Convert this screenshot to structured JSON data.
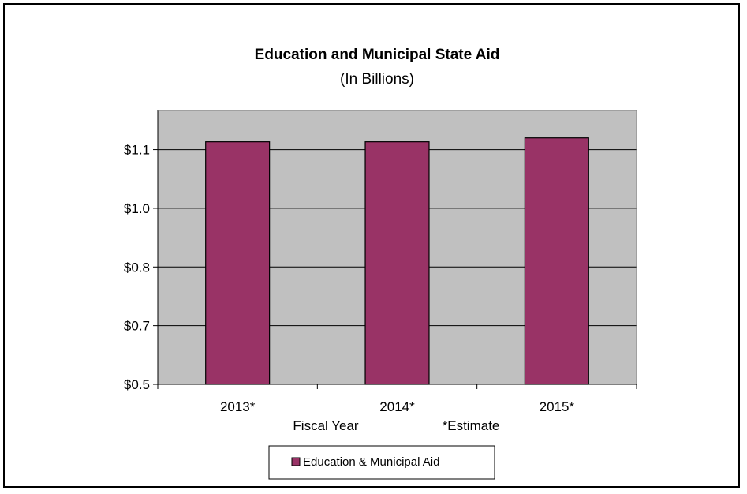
{
  "chart_data": {
    "type": "bar",
    "title": "Education and Municipal State Aid",
    "subtitle": "(In Billions)",
    "xlabel": "Fiscal Year",
    "note": "*Estimate",
    "categories": [
      "2013*",
      "2014*",
      "2015*"
    ],
    "series": [
      {
        "name": "Education & Municipal Aid",
        "values": [
          1.12,
          1.12,
          1.13
        ],
        "color": "#993366"
      }
    ],
    "ylim": [
      0.5,
      1.2
    ],
    "yticks": [
      {
        "value": 0.5,
        "label": "$0.5"
      },
      {
        "value": 0.65,
        "label": "$0.7"
      },
      {
        "value": 0.8,
        "label": "$0.8"
      },
      {
        "value": 0.95,
        "label": "$1.0"
      },
      {
        "value": 1.1,
        "label": "$1.1"
      }
    ],
    "grid": true,
    "legend_position": "bottom",
    "plot_background": "#c0c0c0"
  }
}
